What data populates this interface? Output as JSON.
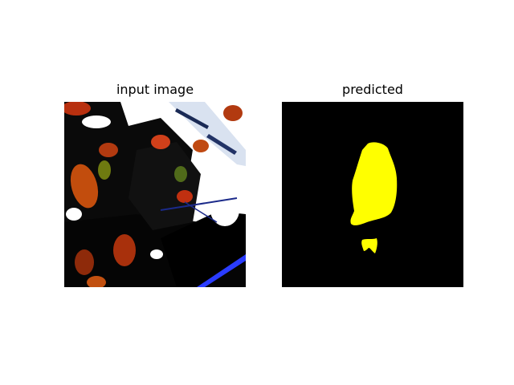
{
  "figure": {
    "panels": [
      {
        "title": "input image",
        "kind": "photo",
        "subject": "tree branch with autumn leaves"
      },
      {
        "title": "predicted",
        "kind": "segmentation-mask",
        "mask_color": "#ffff00",
        "background_color": "#000000"
      }
    ]
  }
}
